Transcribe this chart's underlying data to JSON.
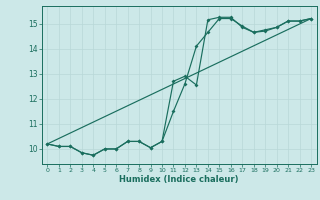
{
  "xlabel": "Humidex (Indice chaleur)",
  "ylabel": "",
  "xlim": [
    -0.5,
    23.5
  ],
  "ylim": [
    9.4,
    15.7
  ],
  "yticks": [
    10,
    11,
    12,
    13,
    14,
    15
  ],
  "xticks": [
    0,
    1,
    2,
    3,
    4,
    5,
    6,
    7,
    8,
    9,
    10,
    11,
    12,
    13,
    14,
    15,
    16,
    17,
    18,
    19,
    20,
    21,
    22,
    23
  ],
  "bg_color": "#cce8e8",
  "grid_color": "#b8d8d8",
  "line_color": "#1a6e5e",
  "line1_x": [
    0,
    1,
    2,
    3,
    4,
    5,
    6,
    7,
    8,
    9,
    10,
    11,
    12,
    13,
    14,
    15,
    16,
    17,
    18,
    19,
    20,
    21,
    22,
    23
  ],
  "line1_y": [
    10.2,
    10.1,
    10.1,
    9.85,
    9.75,
    10.0,
    10.0,
    10.3,
    10.3,
    10.05,
    10.3,
    11.5,
    12.6,
    14.1,
    14.65,
    15.2,
    15.2,
    14.9,
    14.65,
    14.75,
    14.85,
    15.1,
    15.1,
    15.2
  ],
  "line2_x": [
    0,
    1,
    2,
    3,
    4,
    5,
    6,
    7,
    8,
    9,
    10,
    11,
    12,
    13,
    14,
    15,
    16,
    17,
    18,
    19,
    20,
    21,
    22,
    23
  ],
  "line2_y": [
    10.2,
    10.1,
    10.1,
    9.85,
    9.75,
    10.0,
    10.0,
    10.3,
    10.3,
    10.05,
    10.3,
    12.7,
    12.9,
    12.55,
    15.15,
    15.25,
    15.25,
    14.85,
    14.65,
    14.7,
    14.85,
    15.1,
    15.1,
    15.2
  ],
  "line3_x": [
    0,
    23
  ],
  "line3_y": [
    10.2,
    15.2
  ],
  "marker_size": 2.0,
  "line_width": 0.85
}
